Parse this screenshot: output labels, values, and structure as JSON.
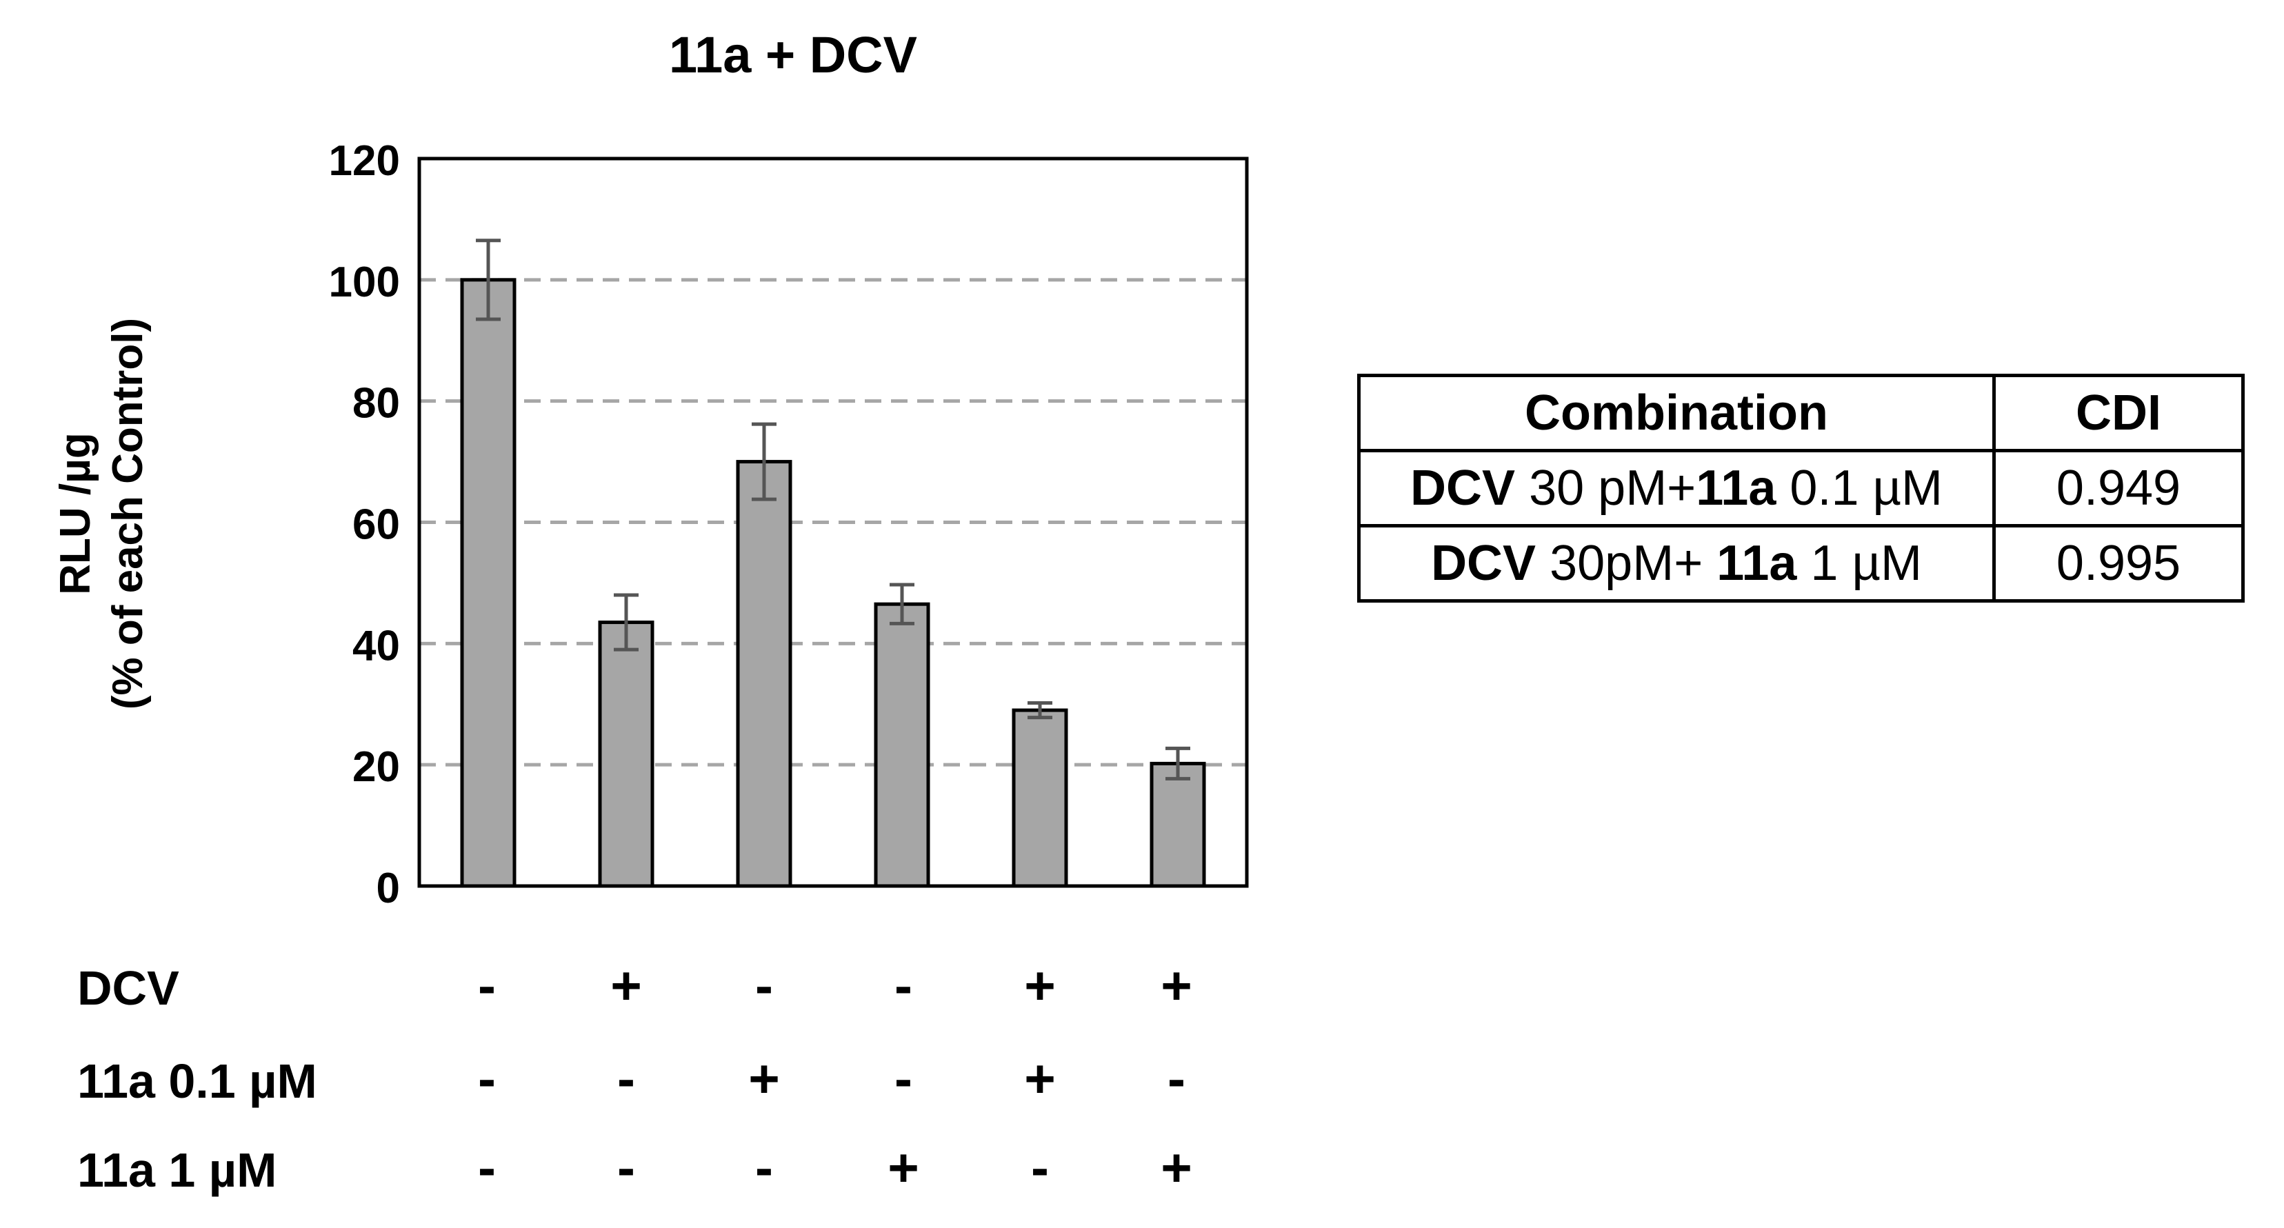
{
  "chart_data": {
    "type": "bar",
    "title": "11a + DCV",
    "ylabel_line1": "RLU /µg",
    "ylabel_line2": "(% of each Control)",
    "xlabel": "",
    "ylim": [
      0,
      120
    ],
    "yticks": [
      0,
      20,
      40,
      60,
      80,
      100,
      120
    ],
    "grid": "dashed horizontal",
    "bar_color": "#a6a6a6",
    "values": [
      100,
      43.5,
      70,
      46.5,
      29,
      20.2
    ],
    "errors": [
      6.5,
      4.5,
      6.2,
      3.2,
      1.2,
      2.5
    ],
    "conditions": [
      {
        "label": "DCV",
        "signs": [
          "-",
          "+",
          "-",
          "-",
          "+",
          "+"
        ]
      },
      {
        "label": "11a 0.1 µM",
        "signs": [
          "-",
          "-",
          "+",
          "-",
          "+",
          "-"
        ]
      },
      {
        "label": "11a 1 µM",
        "signs": [
          "-",
          "-",
          "-",
          "+",
          "-",
          "+"
        ]
      }
    ]
  },
  "table": {
    "headers": [
      "Combination",
      "CDI"
    ],
    "rows": [
      {
        "drug1": "DCV",
        "dose1": " 30 pM+",
        "drug2": "11a",
        "dose2": " 0.1 µM",
        "cdi": "0.949"
      },
      {
        "drug1": "DCV",
        "dose1": " 30pM+ ",
        "drug2": "11a",
        "dose2": " 1 µM",
        "cdi": "0.995"
      }
    ]
  }
}
